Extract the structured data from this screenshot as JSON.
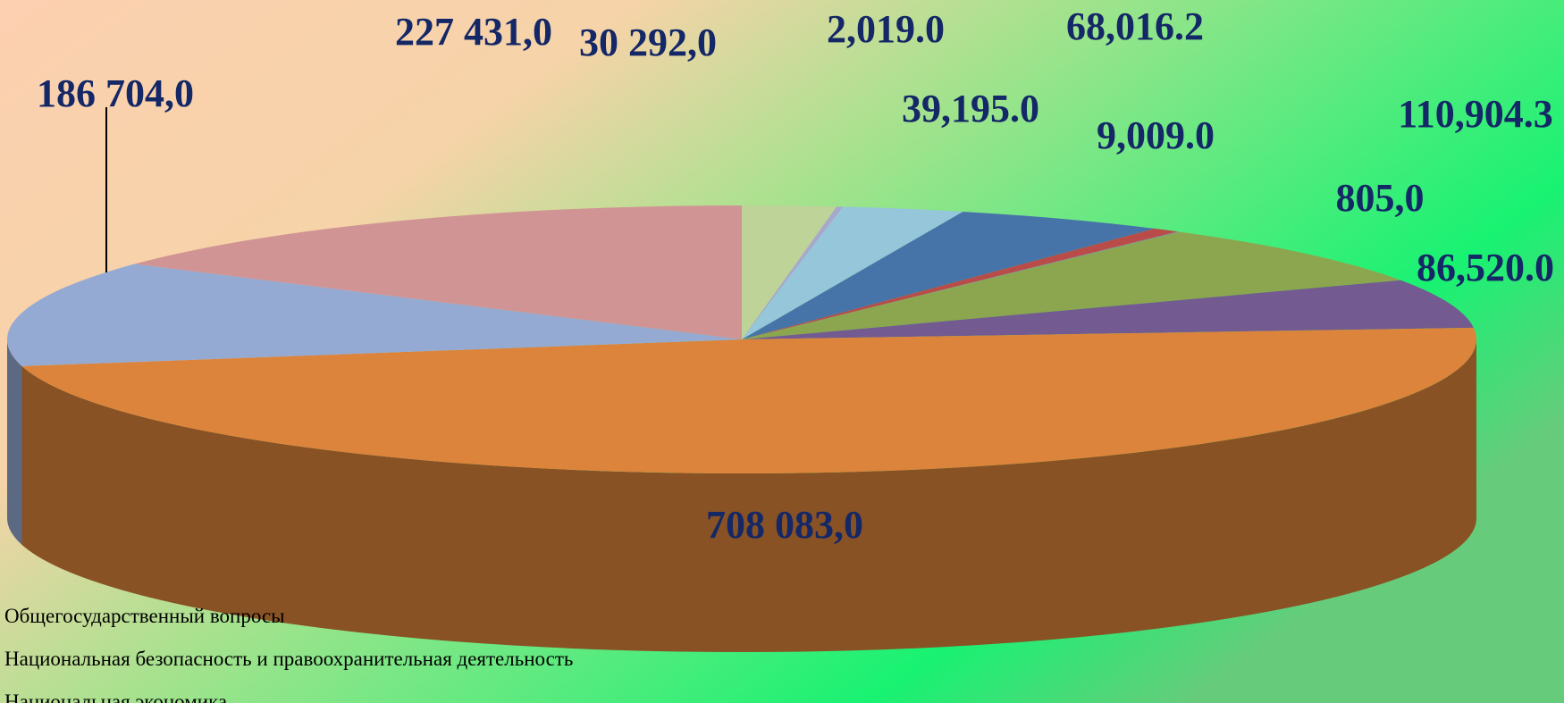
{
  "chart_data": {
    "type": "pie",
    "categories": [
      "Общегосударственный вопросы",
      "Национальная безопасность и правоохранительная деятельность",
      "Национальная экономика",
      null,
      null,
      null,
      null,
      null,
      null,
      null,
      null
    ],
    "values": [
      30292,
      2019,
      39195,
      68016.2,
      9009,
      805,
      110904.3,
      86520,
      708083,
      186704,
      227431
    ],
    "value_labels": [
      "30 292,0",
      "2,019.0",
      "39,195.0",
      "68,016.2",
      "9,009.0",
      "805,0",
      "110,904.3",
      "86,520.0",
      "708 083,0",
      "186 704,0",
      "227 431,0"
    ],
    "colors": [
      "#bdd398",
      "#a8a8cc",
      "#95c6da",
      "#4674a8",
      "#b94b48",
      "#8c86b0",
      "#8ba64e",
      "#735a90",
      "#dc843b",
      "#94aad3",
      "#d19494"
    ]
  }
}
